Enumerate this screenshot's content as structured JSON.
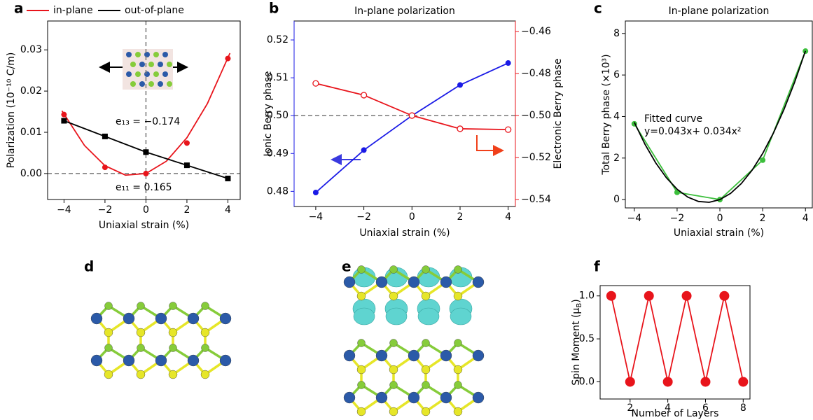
{
  "chart_data": [
    {
      "type": "line",
      "panel_label": "a",
      "xlabel": "Uniaxial strain (%)",
      "ylabel": "Polarization (10⁻¹⁰ C/m)",
      "xlim": [
        -4.8,
        4.6
      ],
      "ylim": [
        -0.0063,
        0.037
      ],
      "xticks": [
        {
          "value": -4,
          "label": "−4"
        },
        {
          "value": -2,
          "label": "−2"
        },
        0,
        2,
        4
      ],
      "yticks": [
        {
          "value": 0,
          "label": "0.00"
        },
        0.01,
        0.02,
        0.03
      ],
      "zero_lines": true,
      "legend": "top",
      "series": [
        {
          "name": "in-plane",
          "color": "#e8141b",
          "x": [
            -4,
            -2,
            0,
            2,
            4
          ],
          "values": [
            0.0143,
            0.0015,
            0,
            0.0074,
            0.0279
          ],
          "marker": "circle",
          "line": false
        },
        {
          "color": "#e8141b",
          "x": [
            -4.1,
            -3,
            -2,
            -1,
            0,
            1,
            2,
            3,
            4.1
          ],
          "values": [
            0.0152,
            0.0068,
            0.0019,
            -0.0004,
            0,
            0.003,
            0.0087,
            0.01698,
            0.0292
          ],
          "marker": "none",
          "line": true
        },
        {
          "name": "out-of-plane",
          "color": "#000000",
          "x": [
            -4,
            -2,
            0,
            2,
            4
          ],
          "values": [
            0.0128,
            0.009,
            0.0052,
            0.002,
            -0.0012
          ],
          "marker": "square",
          "line": true
        }
      ],
      "annotations": [
        {
          "text": "e₁₃ = −0.174",
          "color": "#000000"
        },
        {
          "text": "e₁₁ = 0.165",
          "color": "#e8141b"
        }
      ]
    },
    {
      "type": "line",
      "panel_label": "b",
      "title": "In-plane polarization",
      "xlabel": "Uniaxial strain (%)",
      "ylabel": "Ionic Berry phase",
      "y2label": "Electronic Berry phase",
      "ycolor": "#1a1ae6",
      "y2color": "#e8141b",
      "xlim": [
        -4.9,
        4.3
      ],
      "ylim": [
        0.476,
        0.525
      ],
      "y2lim": [
        -0.5433,
        -0.455
      ],
      "xticks": [
        {
          "value": -4,
          "label": "−4"
        },
        {
          "value": -2,
          "label": "−2"
        },
        0,
        2,
        4
      ],
      "yticks": [
        0.48,
        0.49,
        {
          "value": 0.5,
          "label": "0.50"
        },
        0.51,
        0.52
      ],
      "y2ticks": [
        {
          "value": -0.54,
          "label": "−0.54"
        },
        {
          "value": -0.52,
          "label": "−0.52"
        },
        {
          "value": -0.5,
          "label": "−0.50"
        },
        {
          "value": -0.48,
          "label": "−0.48"
        },
        {
          "value": -0.46,
          "label": "−0.46"
        }
      ],
      "hline": 0.5,
      "series": [
        {
          "color": "#1a1ae6",
          "x": [
            -4,
            -2,
            0,
            2,
            4
          ],
          "values": [
            0.4797,
            0.4909,
            0.5,
            0.5081,
            0.5139
          ],
          "marker": "circle",
          "line": true
        },
        {
          "color": "#e8141b",
          "axis": "y2",
          "x": [
            -4,
            -2,
            0,
            2,
            4
          ],
          "values": [
            -0.4847,
            -0.4903,
            -0.5,
            -0.5063,
            -0.5067
          ],
          "marker": "open-circle",
          "line": true
        }
      ]
    },
    {
      "type": "line",
      "panel_label": "c",
      "title": "In-plane polarization",
      "xlabel": "Uniaxial strain (%)",
      "ylabel": "Total Berry phase (×10³)",
      "xlim": [
        -4.42,
        4.32
      ],
      "ylim": [
        -0.4,
        8.6
      ],
      "xticks": [
        {
          "value": -4,
          "label": "−4"
        },
        {
          "value": -2,
          "label": "−2"
        },
        0,
        2,
        4
      ],
      "yticks": [
        0,
        2,
        4,
        6,
        8
      ],
      "series": [
        {
          "color": "#3cbf3c",
          "x": [
            -4,
            -2,
            0,
            2,
            4
          ],
          "values": [
            3.65,
            0.35,
            0,
            1.9,
            7.15
          ],
          "marker": "circle",
          "line": true
        },
        {
          "color": "#000000",
          "x": [
            -4,
            -3.5,
            -3,
            -2.5,
            -2,
            -1.5,
            -1,
            -0.5,
            0,
            0.5,
            1,
            1.5,
            2,
            2.5,
            3,
            3.5,
            4
          ],
          "values": [
            3.72,
            2.66,
            1.77,
            1.05,
            0.5,
            0.12,
            -0.09,
            -0.13,
            0,
            0.3,
            0.77,
            1.41,
            2.22,
            3.2,
            4.35,
            5.67,
            7.16
          ],
          "marker": "none",
          "line": true
        }
      ],
      "annotations": [
        {
          "text": "Fitted curve",
          "color": "#000000"
        },
        {
          "text": "y=0.043x+ 0.034x²",
          "color": "#000000"
        }
      ]
    },
    {
      "type": "line",
      "panel_label": "f",
      "xlabel": "Number of Layers",
      "ylabel": "Spin Moment (μ",
      "ylabel_sub": "B",
      "ylabel_end": ")",
      "xlim": [
        0.41,
        8.36
      ],
      "ylim": [
        -0.2,
        1.12
      ],
      "xticks": [
        2,
        4,
        6,
        8
      ],
      "yticks": [
        {
          "value": 0,
          "label": "0.0"
        },
        0.5,
        {
          "value": 1,
          "label": "1.0"
        }
      ],
      "series": [
        {
          "color": "#e8141b",
          "x": [
            1,
            2,
            3,
            4,
            5,
            6,
            7,
            8
          ],
          "values": [
            1,
            0,
            1,
            0,
            1,
            0,
            1,
            0
          ],
          "marker": "circle",
          "line": true
        }
      ]
    }
  ],
  "figures": [
    {
      "panel_label": "d"
    },
    {
      "panel_label": "e"
    }
  ]
}
